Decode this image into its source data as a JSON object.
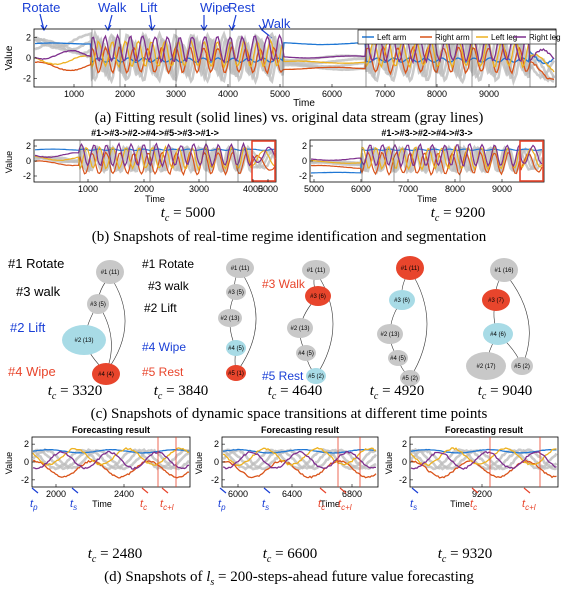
{
  "panel_a": {
    "regimes": [
      "Rotate",
      "Walk",
      "Lift",
      "Wipe",
      "Rest",
      "Walk"
    ],
    "legend": [
      "Left arm",
      "Right arm",
      "Left leg",
      "Right leg"
    ],
    "ylabel": "Value",
    "xlabel": "Time",
    "yticks": [
      "2",
      "0",
      "-2"
    ],
    "xticks": [
      "1000",
      "2000",
      "3000",
      "4000",
      "5000",
      "6000",
      "7000",
      "8000",
      "9000"
    ],
    "caption": "(a) Fitting result (solid lines) vs. original data stream (gray lines)"
  },
  "panel_b": {
    "left": {
      "title": "#1->#3->#2->#4->#5->#3->#1->",
      "ylabel": "Value",
      "xlabel": "Time",
      "yticks": [
        "2",
        "0",
        "-2"
      ],
      "xticks": [
        "1000",
        "2000",
        "3000",
        "4000",
        "5000"
      ],
      "tc_value": "5000"
    },
    "right": {
      "title": "#1->#3->#2->#4->#3->",
      "xlabel": "Time",
      "yticks": [
        "2",
        "0",
        "-2"
      ],
      "xticks": [
        "5000",
        "6000",
        "7000",
        "8000",
        "9000"
      ],
      "tc_value": "9200"
    },
    "caption": "(b) Snapshots of real-time regime identification and segmentation"
  },
  "panel_c": {
    "t3320": {
      "tc_value": "3320",
      "labels": [
        "#1 Rotate",
        "#3 walk",
        "#2 Lift",
        "#4 Wipe"
      ],
      "nodes": [
        "#1 (11)",
        "#3 (5)",
        "#2 (13)",
        "#4 (4)"
      ]
    },
    "t3840": {
      "tc_value": "3840",
      "labels": [
        "#1 Rotate",
        "#3 walk",
        "#2 Lift",
        "#4 Wipe",
        "#5 Rest"
      ],
      "nodes": [
        "#1 (11)",
        "#3 (5)",
        "#2 (13)",
        "#4 (5)",
        "#5 (1)"
      ]
    },
    "t4640": {
      "tc_value": "4640",
      "labels": [
        "#3 Walk",
        "#5 Rest"
      ],
      "nodes": [
        "#1 (11)",
        "#3 (6)",
        "#2 (13)",
        "#4 (5)",
        "#5 (2)"
      ]
    },
    "t4920": {
      "tc_value": "4920",
      "nodes": [
        "#1 (11)",
        "#3 (6)",
        "#2 (13)",
        "#4 (5)",
        "#5 (2)"
      ]
    },
    "t9040": {
      "tc_value": "9040",
      "nodes": [
        "#1 (16)",
        "#3 (7)",
        "#4 (6)",
        "#2 (17)",
        "#5 (2)"
      ]
    },
    "caption": "(c) Snapshots of dynamic space transitions at different time points"
  },
  "panel_d": {
    "title": "Forecasting result",
    "ylabel": "Value",
    "p1": {
      "yticks": [
        "2",
        "0",
        "-2"
      ],
      "xticks": [
        "2000",
        "2400"
      ],
      "markers": [
        "t_p",
        "t_s",
        "t_c",
        "t_c+l_s"
      ],
      "xlabel": "Time",
      "tc_value": "2480"
    },
    "p2": {
      "yticks": [
        "2",
        "0",
        "-2"
      ],
      "xticks": [
        "6000",
        "6400",
        "6800"
      ],
      "markers": [
        "t_p",
        "t_s",
        "t_c",
        "t_c+l_s"
      ],
      "xlabel": "Time",
      "tc_value": "6600"
    },
    "p3": {
      "yticks": [
        "2",
        "0",
        "-2"
      ],
      "xticks": [
        "9200"
      ],
      "markers": [
        "t_s",
        "t_c",
        "t_c+l_s"
      ],
      "xlabel": "Time",
      "tc_value": "9320"
    },
    "caption_prefix": "(d) Snapshots of",
    "caption_steps": "200",
    "caption_suffix": "-steps-ahead future value forecasting"
  },
  "colors": {
    "left_arm": "#1f77d4",
    "right_arm": "#d95319",
    "left_leg": "#edb120",
    "right_leg": "#7e2f8e",
    "gray": "#bdbdbd",
    "regime_text": "#1a3fd6",
    "red": "#e8452c",
    "cyan": "#a8dbe6"
  }
}
